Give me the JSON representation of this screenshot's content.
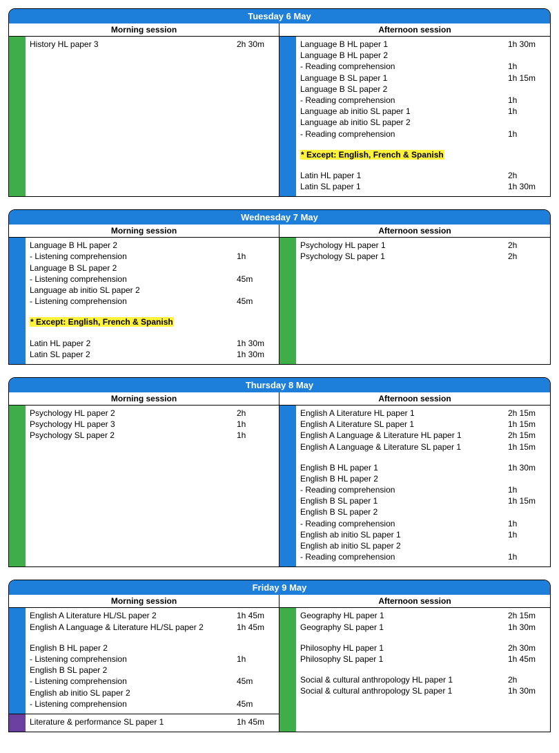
{
  "colors": {
    "header_bg": "#1e7fdb",
    "green": "#3fae49",
    "blue": "#1e7fdb",
    "purple": "#6b3fa0",
    "highlight": "#fff23a"
  },
  "session_labels": {
    "morning": "Morning session",
    "afternoon": "Afternoon session"
  },
  "days": [
    {
      "title": "Tuesday 6 May",
      "morning": {
        "segments": [
          {
            "color": "green",
            "rows": [
              {
                "label": "History HL paper 3",
                "dur": "2h 30m"
              }
            ]
          }
        ]
      },
      "afternoon": {
        "segments": [
          {
            "color": "blue",
            "rows": [
              {
                "label": "Language B HL paper 1",
                "dur": "1h 30m"
              },
              {
                "label": "Language B HL paper 2",
                "dur": ""
              },
              {
                "label": "- Reading comprehension",
                "dur": "1h"
              },
              {
                "label": "Language B SL paper 1",
                "dur": "1h 15m"
              },
              {
                "label": "Language B SL paper 2",
                "dur": ""
              },
              {
                "label": "- Reading comprehension",
                "dur": "1h"
              },
              {
                "label": "Language ab initio SL paper 1",
                "dur": "1h"
              },
              {
                "label": "Language ab initio SL paper 2",
                "dur": ""
              },
              {
                "label": "- Reading comprehension",
                "dur": "1h"
              },
              {
                "spacer": true
              },
              {
                "label": "* Except: English, French & Spanish",
                "dur": "",
                "highlight": true
              },
              {
                "spacer": true
              },
              {
                "label": "Latin HL paper 1",
                "dur": "2h"
              },
              {
                "label": "Latin SL paper 1",
                "dur": "1h 30m"
              }
            ]
          }
        ]
      }
    },
    {
      "title": "Wednesday 7 May",
      "morning": {
        "segments": [
          {
            "color": "blue",
            "rows": [
              {
                "label": "Language B HL paper 2",
                "dur": ""
              },
              {
                "label": "- Listening comprehension",
                "dur": "1h"
              },
              {
                "label": "Language B SL paper 2",
                "dur": ""
              },
              {
                "label": "- Listening comprehension",
                "dur": "45m"
              },
              {
                "label": "Language ab initio SL paper 2",
                "dur": ""
              },
              {
                "label": "- Listening comprehension",
                "dur": "45m"
              },
              {
                "spacer": true
              },
              {
                "label": "* Except: English, French & Spanish",
                "dur": "",
                "highlight": true
              },
              {
                "spacer": true
              },
              {
                "label": "Latin HL paper 2",
                "dur": "1h 30m"
              },
              {
                "label": "Latin SL paper 2",
                "dur": "1h 30m"
              }
            ]
          }
        ]
      },
      "afternoon": {
        "segments": [
          {
            "color": "green",
            "rows": [
              {
                "label": "Psychology HL paper 1",
                "dur": "2h"
              },
              {
                "label": "Psychology SL paper 1",
                "dur": "2h"
              }
            ]
          }
        ]
      }
    },
    {
      "title": "Thursday 8 May",
      "morning": {
        "segments": [
          {
            "color": "green",
            "rows": [
              {
                "label": "Psychology HL paper 2",
                "dur": "2h"
              },
              {
                "label": "Psychology HL paper 3",
                "dur": "1h"
              },
              {
                "label": "Psychology SL paper 2",
                "dur": "1h"
              }
            ]
          }
        ]
      },
      "afternoon": {
        "segments": [
          {
            "color": "blue",
            "rows": [
              {
                "label": "English A Literature HL paper 1",
                "dur": "2h 15m"
              },
              {
                "label": "English A Literature SL paper 1",
                "dur": "1h 15m"
              },
              {
                "label": "English A Language & Literature HL paper 1",
                "dur": "2h 15m"
              },
              {
                "label": "English A Language & Literature SL paper 1",
                "dur": "1h 15m"
              },
              {
                "spacer": true
              },
              {
                "label": "English B HL paper 1",
                "dur": "1h 30m"
              },
              {
                "label": "English B HL paper 2",
                "dur": ""
              },
              {
                "label": "- Reading comprehension",
                "dur": "1h"
              },
              {
                "label": "English B SL paper 1",
                "dur": "1h 15m"
              },
              {
                "label": "English B SL paper 2",
                "dur": ""
              },
              {
                "label": "- Reading comprehension",
                "dur": "1h"
              },
              {
                "label": "English ab initio SL paper 1",
                "dur": "1h"
              },
              {
                "label": "English ab initio SL paper 2",
                "dur": ""
              },
              {
                "label": "- Reading comprehension",
                "dur": "1h"
              }
            ]
          }
        ]
      }
    },
    {
      "title": "Friday 9 May",
      "morning": {
        "segments": [
          {
            "color": "blue",
            "rows": [
              {
                "label": "English A Literature HL/SL paper 2",
                "dur": "1h 45m"
              },
              {
                "label": "English A Language & Literature HL/SL paper 2",
                "dur": "1h 45m"
              },
              {
                "spacer": true
              },
              {
                "label": "English B HL paper 2",
                "dur": ""
              },
              {
                "label": "- Listening comprehension",
                "dur": "1h"
              },
              {
                "label": "English B SL paper 2",
                "dur": ""
              },
              {
                "label": "- Listening comprehension",
                "dur": "45m"
              },
              {
                "label": "English ab initio SL paper 2",
                "dur": ""
              },
              {
                "label": "- Listening comprehension",
                "dur": "45m"
              }
            ]
          },
          {
            "color": "purple",
            "rows": [
              {
                "label": "Literature & performance SL paper 1",
                "dur": "1h 45m"
              }
            ]
          }
        ]
      },
      "afternoon": {
        "segments": [
          {
            "color": "green",
            "rows": [
              {
                "label": "Geography HL paper 1",
                "dur": "2h 15m"
              },
              {
                "label": "Geography SL paper 1",
                "dur": "1h 30m"
              },
              {
                "spacer": true
              },
              {
                "label": "Philosophy HL paper 1",
                "dur": "2h 30m"
              },
              {
                "label": "Philosophy SL paper 1",
                "dur": "1h 45m"
              },
              {
                "spacer": true
              },
              {
                "label": "Social & cultural anthropology HL paper 1",
                "dur": "2h"
              },
              {
                "label": "Social & cultural anthropology SL paper 1",
                "dur": "1h 30m"
              }
            ]
          }
        ]
      }
    }
  ]
}
